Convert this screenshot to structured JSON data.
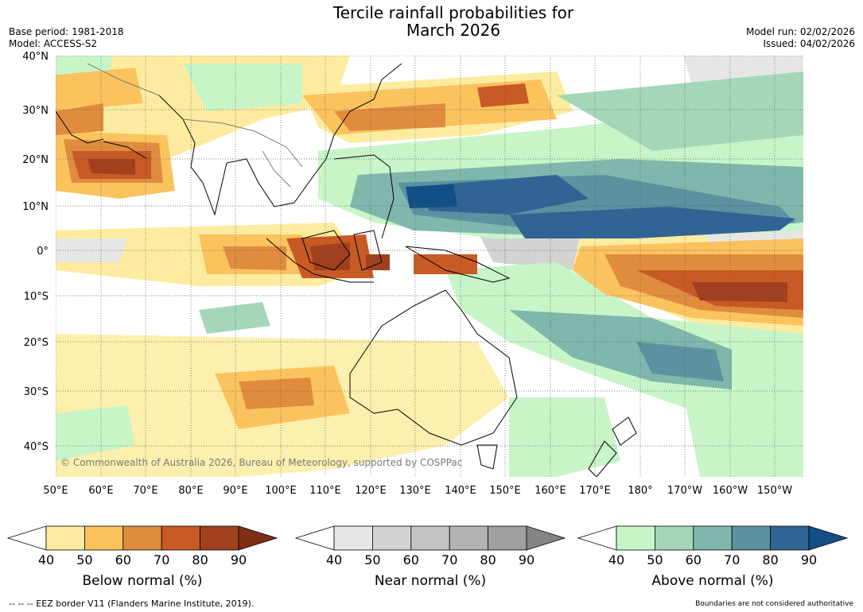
{
  "title": {
    "line1": "Tercile rainfall probabilities for",
    "line2": "March 2026"
  },
  "meta": {
    "base_period": "Base period: 1981-2018",
    "model": "Model: ACCESS-S2",
    "model_run": "Model run: 02/02/2026",
    "issued": "Issued: 04/02/2026"
  },
  "map": {
    "lat_labels": [
      "40°N",
      "30°N",
      "20°N",
      "10°N",
      "0°",
      "10°S",
      "20°S",
      "30°S",
      "40°S"
    ],
    "lon_labels": [
      "50°E",
      "60°E",
      "70°E",
      "80°E",
      "90°E",
      "100°E",
      "110°E",
      "120°E",
      "130°E",
      "140°E",
      "150°E",
      "160°E",
      "170°E",
      "180°",
      "170°W",
      "160°W",
      "150°W"
    ],
    "copyright": "© Commonwealth of Australia 2026, Bureau of Meteorology, supported by COSPPac"
  },
  "legends": [
    {
      "title": "Below normal (%)",
      "ticks": [
        "40",
        "50",
        "60",
        "70",
        "80",
        "90"
      ],
      "colors": [
        "#ffffff",
        "#fdeca0",
        "#fbc35e",
        "#e08c3f",
        "#c85a25",
        "#a1401f",
        "#7f2e15"
      ]
    },
    {
      "title": "Near normal (%)",
      "ticks": [
        "40",
        "50",
        "60",
        "70",
        "80",
        "90"
      ],
      "colors": [
        "#ffffff",
        "#e6e6e6",
        "#d3d3d3",
        "#c4c4c4",
        "#b3b3b3",
        "#a0a0a0",
        "#858585"
      ]
    },
    {
      "title": "Above normal (%)",
      "ticks": [
        "40",
        "50",
        "60",
        "70",
        "80",
        "90"
      ],
      "colors": [
        "#ffffff",
        "#c8f5c8",
        "#a3d7b8",
        "#80b7ac",
        "#5b92a0",
        "#2f6494",
        "#124f86"
      ]
    }
  ],
  "footer": {
    "eez": "--  --  -- EEZ border V11 (Flanders Marine Institute, 2019).",
    "disclaimer": "Boundaries are not considered authoritative"
  }
}
